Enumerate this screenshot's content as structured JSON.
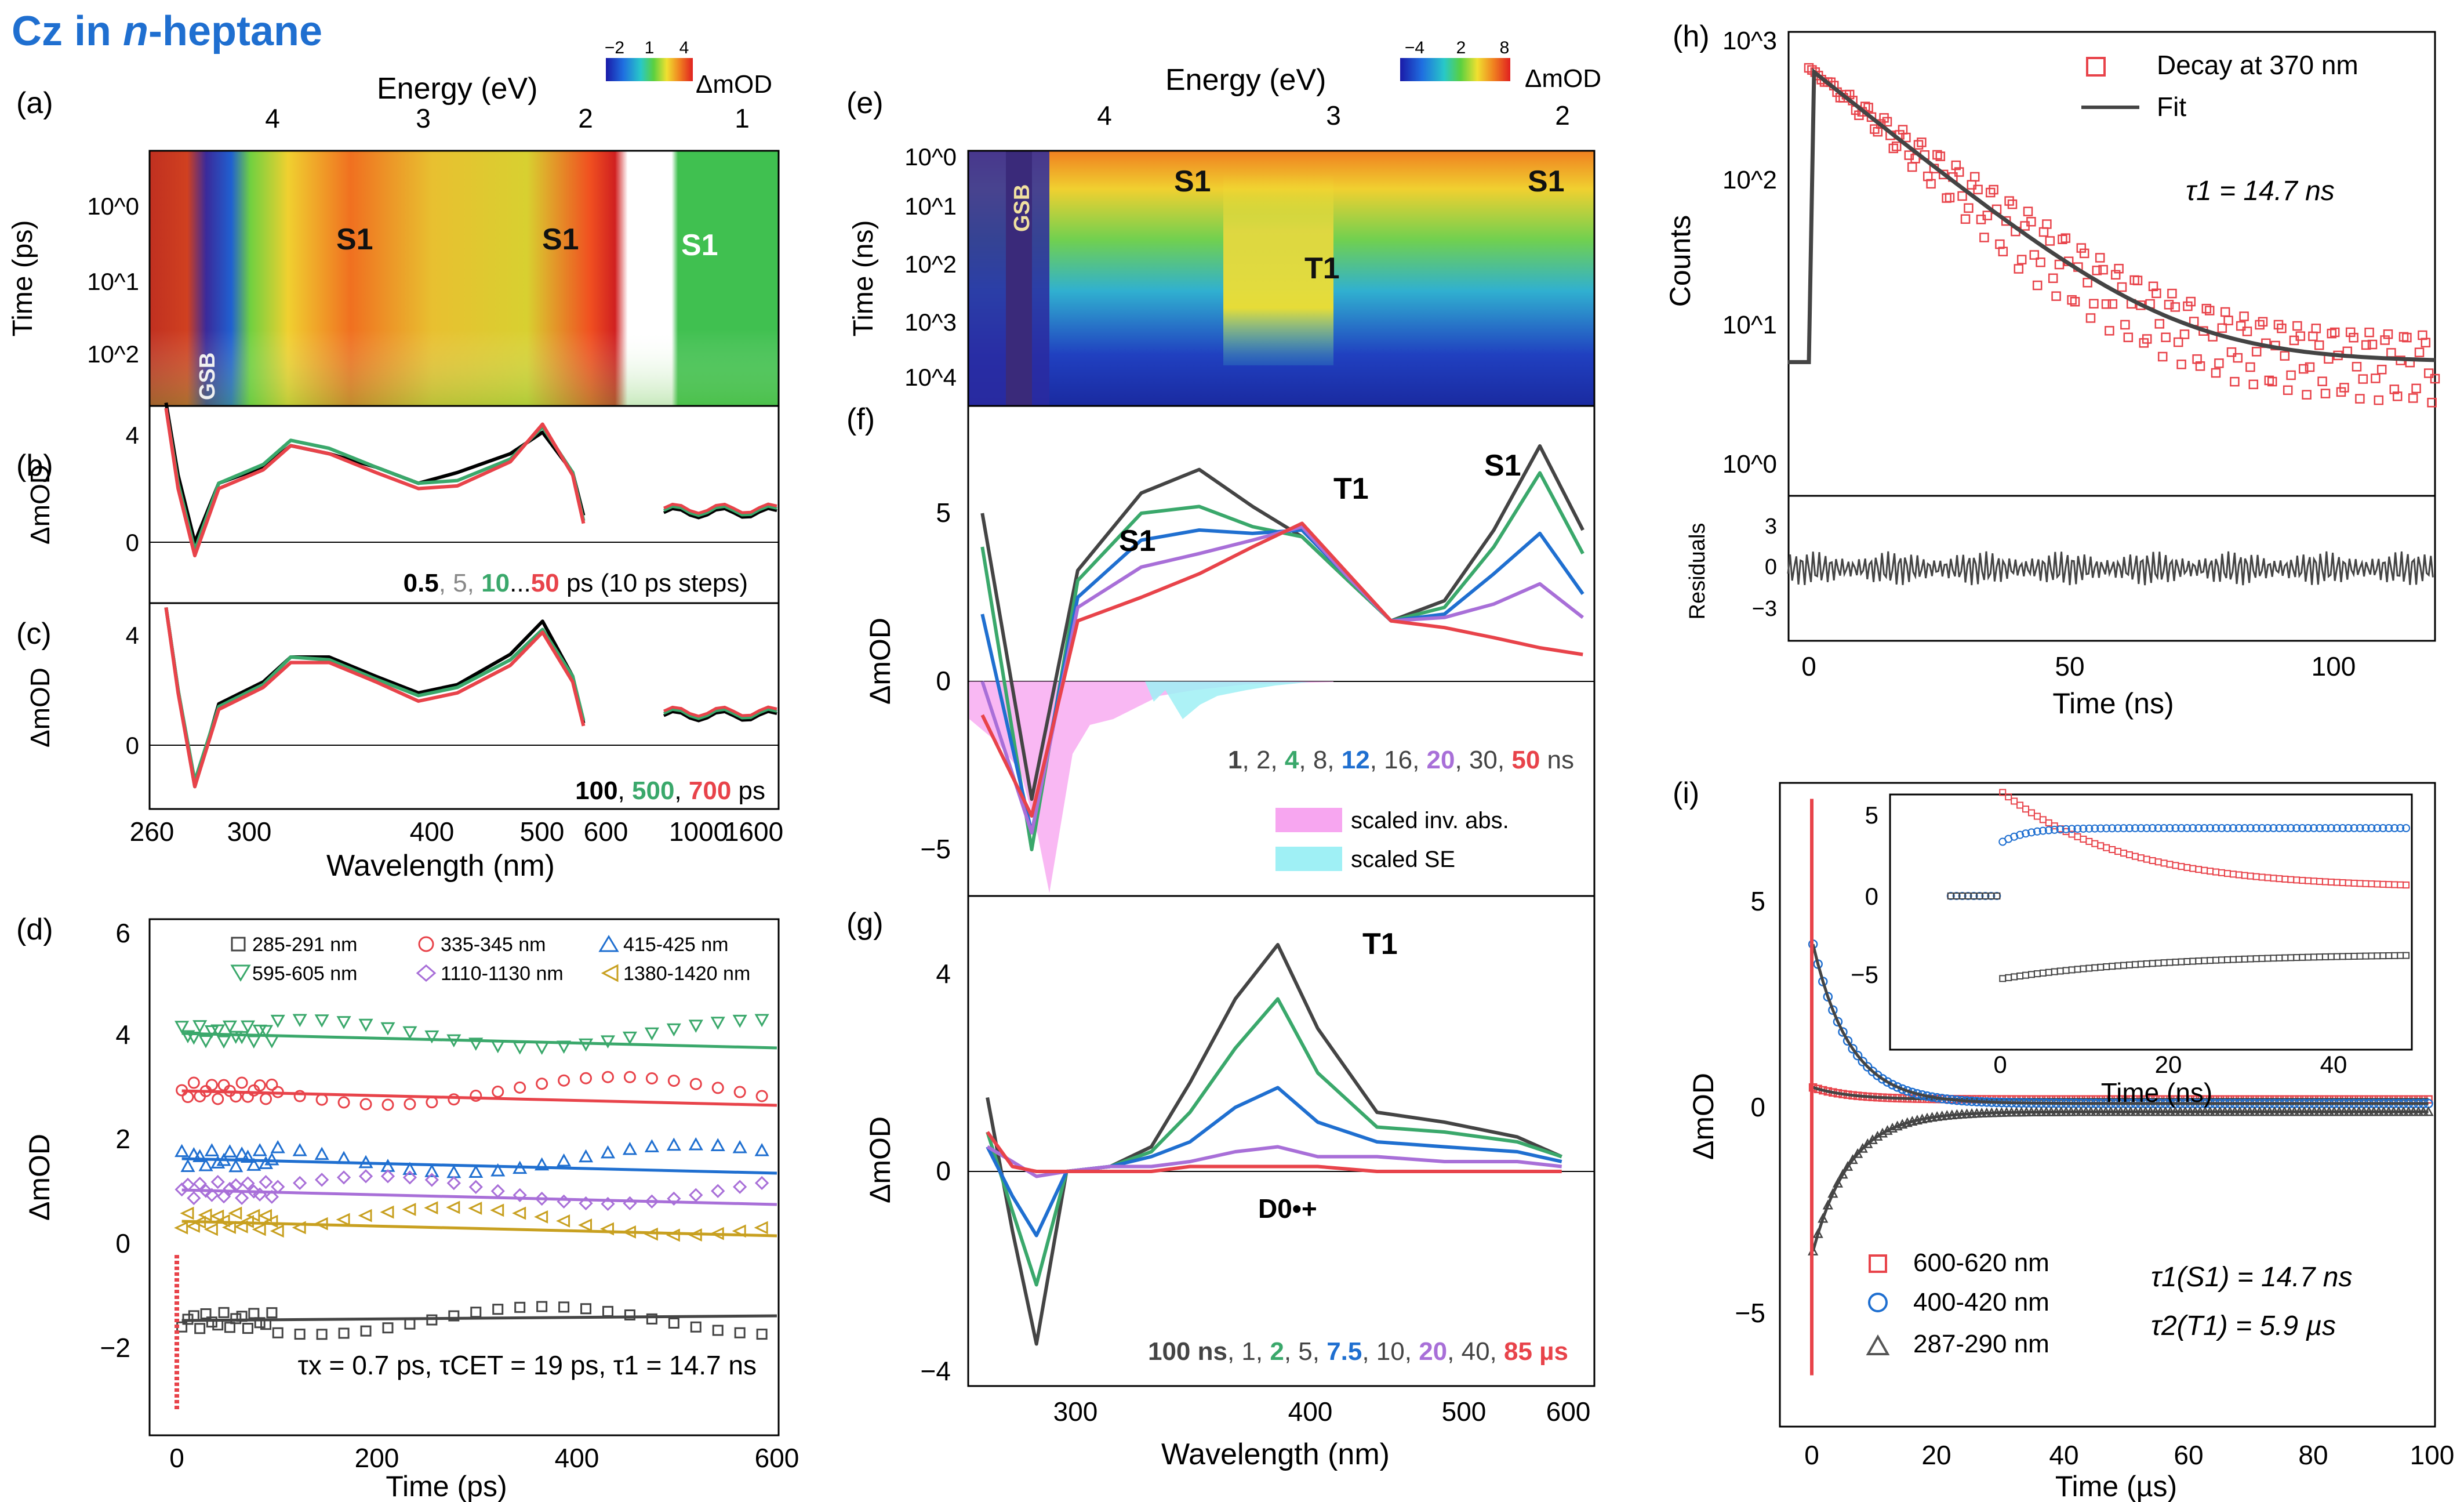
{
  "header": {
    "title_prefix": "Cz in ",
    "title_italic": "n",
    "title_suffix": "-heptane",
    "color": "#1f6fd0"
  },
  "colors": {
    "black": "#000000",
    "gray": "#888888",
    "green": "#3aa86b",
    "red": "#e8434a",
    "blue": "#1f6fd0",
    "purple": "#a86fd8",
    "gold": "#c8a020",
    "dark": "#444444"
  },
  "panels": {
    "a": {
      "label": "(a)",
      "energy_label": "Energy (eV)",
      "energy_ticks": [
        "4",
        "3",
        "2",
        "1"
      ],
      "ylabel": "Time (ps)",
      "yticks": [
        "10^0",
        "10^1",
        "10^2"
      ],
      "annotations": [
        "GSB",
        "S1",
        "S1",
        "S1"
      ],
      "colorbar": {
        "ticks": [
          "−2",
          "1",
          "4"
        ],
        "label": "ΔmOD"
      }
    },
    "b": {
      "label": "(b)",
      "ylabel": "ΔmOD",
      "yticks": [
        "0",
        "4"
      ],
      "legend": [
        {
          "t": "0.5",
          "c": "black",
          "bold": true
        },
        {
          "t": ", 5, ",
          "c": "gray"
        },
        {
          "t": "10",
          "c": "green",
          "bold": true
        },
        {
          "t": "...",
          "c": "black"
        },
        {
          "t": "50",
          "c": "red",
          "bold": true
        },
        {
          "t": " ps (10 ps steps)",
          "c": "black"
        }
      ]
    },
    "c": {
      "label": "(c)",
      "ylabel": "ΔmOD",
      "yticks": [
        "0",
        "4"
      ],
      "legend": [
        {
          "t": "100",
          "c": "black",
          "bold": true
        },
        {
          "t": ", ",
          "c": "black"
        },
        {
          "t": "500",
          "c": "green",
          "bold": true
        },
        {
          "t": ", ",
          "c": "black"
        },
        {
          "t": "700",
          "c": "red",
          "bold": true
        },
        {
          "t": " ps",
          "c": "black"
        }
      ],
      "xticks": [
        "260",
        "300",
        "400",
        "500",
        "600",
        "1000",
        "1600"
      ],
      "xlabel": "Wavelength (nm)"
    },
    "d": {
      "label": "(d)",
      "ylabel": "ΔmOD",
      "yticks": [
        "−2",
        "0",
        "2",
        "4",
        "6"
      ],
      "xticks": [
        "0",
        "200",
        "400",
        "600"
      ],
      "xlabel": "Time (ps)",
      "legend": [
        "285-291 nm",
        "335-345 nm",
        "415-425 nm",
        "595-605 nm",
        "1110-1130 nm",
        "1380-1420 nm"
      ],
      "note": "τx = 0.7 ps, τCET = 19 ps, τ1 = 14.7 ns"
    },
    "e": {
      "label": "(e)",
      "energy_label": "Energy (eV)",
      "energy_ticks": [
        "4",
        "3",
        "2"
      ],
      "ylabel": "Time (ns)",
      "yticks": [
        "10^0",
        "10^1",
        "10^2",
        "10^3",
        "10^4"
      ],
      "annotations": [
        "GSB",
        "S1",
        "T1",
        "S1"
      ],
      "colorbar": {
        "ticks": [
          "−4",
          "2",
          "8"
        ],
        "label": "ΔmOD"
      }
    },
    "f": {
      "label": "(f)",
      "ylabel": "ΔmOD",
      "yticks": [
        "−5",
        "0",
        "5"
      ],
      "annotations": [
        "S1",
        "T1",
        "S1"
      ],
      "legend": [
        {
          "t": "1",
          "c": "dark",
          "bold": true
        },
        {
          "t": ", 2, ",
          "c": "dark"
        },
        {
          "t": "4",
          "c": "green",
          "bold": true
        },
        {
          "t": ", 8, ",
          "c": "dark"
        },
        {
          "t": "12",
          "c": "blue",
          "bold": true
        },
        {
          "t": ", 16, ",
          "c": "dark"
        },
        {
          "t": "20",
          "c": "purple",
          "bold": true
        },
        {
          "t": ", 30, ",
          "c": "dark"
        },
        {
          "t": "50",
          "c": "red",
          "bold": true
        },
        {
          "t": " ns",
          "c": "dark"
        }
      ],
      "fill_legend": [
        "scaled inv. abs.",
        "scaled SE"
      ]
    },
    "g": {
      "label": "(g)",
      "ylabel": "ΔmOD",
      "yticks": [
        "−4",
        "0",
        "4"
      ],
      "annotations": [
        "T1",
        "D0•+"
      ],
      "legend": [
        {
          "t": "100 ns",
          "c": "dark",
          "bold": true
        },
        {
          "t": ", 1, ",
          "c": "dark"
        },
        {
          "t": "2",
          "c": "green",
          "bold": true
        },
        {
          "t": ", 5, ",
          "c": "dark"
        },
        {
          "t": "7.5",
          "c": "blue",
          "bold": true
        },
        {
          "t": ", 10, ",
          "c": "dark"
        },
        {
          "t": "20",
          "c": "purple",
          "bold": true
        },
        {
          "t": ", 40, ",
          "c": "dark"
        },
        {
          "t": "85 µs",
          "c": "red",
          "bold": true
        }
      ],
      "xticks": [
        "300",
        "400",
        "500",
        "600"
      ],
      "xlabel": "Wavelength (nm)"
    },
    "h": {
      "label": "(h)",
      "ylabel": "Counts",
      "yticks": [
        "10^0",
        "10^1",
        "10^2",
        "10^3"
      ],
      "legend": [
        "Decay at 370 nm",
        "Fit"
      ],
      "note": "τ1 = 14.7 ns",
      "res_label": "Residuals",
      "res_ticks": [
        "3",
        "0",
        "−3"
      ],
      "xticks": [
        "0",
        "50",
        "100"
      ],
      "xlabel": "Time (ns)"
    },
    "i": {
      "label": "(i)",
      "ylabel": "ΔmOD",
      "yticks": [
        "−5",
        "0",
        "5"
      ],
      "xticks": [
        "0",
        "20",
        "40",
        "60",
        "80",
        "100"
      ],
      "xlabel": "Time (µs)",
      "legend": [
        "600-620 nm",
        "400-420 nm",
        "287-290 nm"
      ],
      "notes": [
        "τ1(S1) = 14.7 ns",
        "τ2(T1) = 5.9 µs"
      ],
      "inset": {
        "yticks": [
          "5",
          "0",
          "−5"
        ],
        "xticks": [
          "0",
          "20",
          "40"
        ],
        "xlabel": "Time (ns)"
      }
    }
  },
  "chart_data": [
    {
      "panel": "b",
      "type": "line",
      "series": [
        {
          "name": "0.5 ps",
          "color": "black",
          "x": [
            268,
            275,
            285,
            300,
            330,
            350,
            380,
            420,
            460,
            500,
            560,
            600,
            640,
            655
          ],
          "values": [
            5.2,
            2.5,
            0.0,
            2.2,
            2.8,
            3.6,
            3.3,
            2.8,
            2.2,
            2.6,
            3.3,
            4.1,
            2.6,
            1.0
          ]
        },
        {
          "name": "10 ps",
          "color": "green",
          "x": [
            268,
            275,
            285,
            300,
            330,
            350,
            380,
            420,
            460,
            500,
            560,
            600,
            640,
            655
          ],
          "values": [
            5.0,
            2.2,
            -0.3,
            2.2,
            2.9,
            3.8,
            3.5,
            2.8,
            2.2,
            2.3,
            3.1,
            4.3,
            2.6,
            0.8
          ]
        },
        {
          "name": "50 ps",
          "color": "red",
          "x": [
            268,
            275,
            285,
            300,
            330,
            350,
            380,
            420,
            460,
            500,
            560,
            600,
            640,
            655
          ],
          "values": [
            5.0,
            2.0,
            -0.5,
            2.0,
            2.7,
            3.6,
            3.3,
            2.6,
            2.0,
            2.1,
            3.0,
            4.4,
            2.5,
            0.7
          ]
        }
      ]
    },
    {
      "panel": "c",
      "type": "line",
      "series": [
        {
          "name": "100 ps",
          "color": "black",
          "x": [
            268,
            275,
            285,
            300,
            330,
            350,
            380,
            420,
            460,
            500,
            560,
            600,
            640,
            655
          ],
          "values": [
            5.0,
            2.0,
            -1.5,
            1.5,
            2.3,
            3.2,
            3.2,
            2.5,
            1.9,
            2.2,
            3.3,
            4.5,
            2.5,
            0.8
          ]
        },
        {
          "name": "500 ps",
          "color": "green",
          "x": [
            268,
            275,
            285,
            300,
            330,
            350,
            380,
            420,
            460,
            500,
            560,
            600,
            640,
            655
          ],
          "values": [
            5.0,
            2.0,
            -1.3,
            1.4,
            2.2,
            3.2,
            3.1,
            2.4,
            1.8,
            2.1,
            3.1,
            4.2,
            2.5,
            0.9
          ]
        },
        {
          "name": "700 ps",
          "color": "red",
          "x": [
            268,
            275,
            285,
            300,
            330,
            350,
            380,
            420,
            460,
            500,
            560,
            600,
            640,
            655
          ],
          "values": [
            5.0,
            1.9,
            -1.5,
            1.3,
            2.1,
            3.0,
            3.0,
            2.3,
            1.6,
            1.9,
            2.9,
            4.1,
            2.3,
            0.7
          ]
        }
      ]
    },
    {
      "panel": "d",
      "type": "scatter",
      "series": [
        {
          "name": "285-291 nm",
          "color": "dark",
          "plateau": -1.3
        },
        {
          "name": "335-345 nm",
          "color": "red",
          "plateau": 3.1
        },
        {
          "name": "415-425 nm",
          "color": "blue",
          "plateau": 1.8
        },
        {
          "name": "595-605 nm",
          "color": "green",
          "plateau": 4.2
        },
        {
          "name": "1110-1130 nm",
          "color": "purple",
          "plateau": 1.2
        },
        {
          "name": "1380-1420 nm",
          "color": "gold",
          "plateau": 0.6
        }
      ]
    },
    {
      "panel": "f",
      "type": "line",
      "series": [
        {
          "name": "1 ns",
          "color": "dark",
          "x": [
            260,
            280,
            300,
            330,
            360,
            390,
            420,
            450,
            480,
            520,
            560,
            600,
            640
          ],
          "values": [
            5.0,
            -3.5,
            3.3,
            5.6,
            6.3,
            5.2,
            4.3,
            3.0,
            1.8,
            2.4,
            4.5,
            7.0,
            4.5
          ]
        },
        {
          "name": "4 ns",
          "color": "green",
          "x": [
            260,
            280,
            300,
            330,
            360,
            390,
            420,
            450,
            480,
            520,
            560,
            600,
            640
          ],
          "values": [
            4.0,
            -5.0,
            3.0,
            5.0,
            5.2,
            4.6,
            4.3,
            3.0,
            1.8,
            2.2,
            4.0,
            6.2,
            3.8
          ]
        },
        {
          "name": "12 ns",
          "color": "blue",
          "x": [
            260,
            280,
            300,
            330,
            360,
            390,
            420,
            450,
            480,
            520,
            560,
            600,
            640
          ],
          "values": [
            2.0,
            -4.5,
            2.5,
            4.2,
            4.5,
            4.4,
            4.5,
            3.1,
            1.8,
            2.0,
            3.2,
            4.4,
            2.6
          ]
        },
        {
          "name": "20 ns",
          "color": "purple",
          "x": [
            260,
            280,
            300,
            330,
            360,
            390,
            420,
            450,
            480,
            520,
            560,
            600,
            640
          ],
          "values": [
            0.0,
            -4.5,
            2.2,
            3.4,
            3.8,
            4.2,
            4.6,
            3.1,
            1.8,
            1.9,
            2.3,
            2.9,
            1.9
          ]
        },
        {
          "name": "50 ns",
          "color": "red",
          "x": [
            260,
            280,
            300,
            330,
            360,
            390,
            420,
            450,
            480,
            520,
            560,
            600,
            640
          ],
          "values": [
            -1.0,
            -4.0,
            1.8,
            2.5,
            3.2,
            4.0,
            4.7,
            3.2,
            1.8,
            1.6,
            1.3,
            1.0,
            0.8
          ]
        }
      ]
    },
    {
      "panel": "g",
      "type": "line",
      "series": [
        {
          "name": "100 ns",
          "color": "dark",
          "x": [
            262,
            272,
            282,
            295,
            315,
            335,
            355,
            380,
            405,
            430,
            470,
            520,
            580,
            620
          ],
          "values": [
            1.5,
            -1.2,
            -3.5,
            0.0,
            0.1,
            0.5,
            1.8,
            3.5,
            4.6,
            2.9,
            1.2,
            1.0,
            0.7,
            0.3
          ]
        },
        {
          "name": "2 µs",
          "color": "green",
          "x": [
            262,
            272,
            282,
            295,
            315,
            335,
            355,
            380,
            405,
            430,
            470,
            520,
            580,
            620
          ],
          "values": [
            0.8,
            -0.8,
            -2.3,
            0.0,
            0.1,
            0.4,
            1.2,
            2.5,
            3.5,
            2.0,
            0.9,
            0.8,
            0.6,
            0.3
          ]
        },
        {
          "name": "7.5 µs",
          "color": "blue",
          "x": [
            262,
            272,
            282,
            295,
            315,
            335,
            355,
            380,
            405,
            430,
            470,
            520,
            580,
            620
          ],
          "values": [
            0.5,
            -0.5,
            -1.3,
            0.0,
            0.1,
            0.3,
            0.6,
            1.3,
            1.7,
            1.0,
            0.6,
            0.5,
            0.4,
            0.2
          ]
        },
        {
          "name": "20 µs",
          "color": "purple",
          "x": [
            262,
            272,
            282,
            295,
            315,
            335,
            355,
            380,
            405,
            430,
            470,
            520,
            580,
            620
          ],
          "values": [
            0.5,
            0.2,
            -0.1,
            0.0,
            0.1,
            0.1,
            0.2,
            0.4,
            0.5,
            0.3,
            0.3,
            0.2,
            0.2,
            0.1
          ]
        },
        {
          "name": "85 µs",
          "color": "red",
          "x": [
            262,
            272,
            282,
            295,
            315,
            335,
            355,
            380,
            405,
            430,
            470,
            520,
            580,
            620
          ],
          "values": [
            0.8,
            0.1,
            0.0,
            0.0,
            0.0,
            0.0,
            0.1,
            0.1,
            0.1,
            0.1,
            0.0,
            0.0,
            0.0,
            0.0
          ]
        }
      ]
    },
    {
      "panel": "h",
      "type": "scatter",
      "series": [
        {
          "name": "Decay at 370 nm",
          "color": "red",
          "peak": 700,
          "tau_ns": 14.7,
          "floor": 6
        },
        {
          "name": "Fit",
          "color": "dark",
          "peak": 700,
          "tau_ns": 14.7,
          "floor": 6
        }
      ]
    },
    {
      "panel": "i",
      "type": "scatter",
      "series": [
        {
          "name": "600-620 nm",
          "color": "red",
          "amplitude": 0.3
        },
        {
          "name": "400-420 nm",
          "color": "blue",
          "amplitude": 4.0
        },
        {
          "name": "287-290 nm",
          "color": "dark",
          "amplitude": -3.5
        }
      ]
    }
  ]
}
